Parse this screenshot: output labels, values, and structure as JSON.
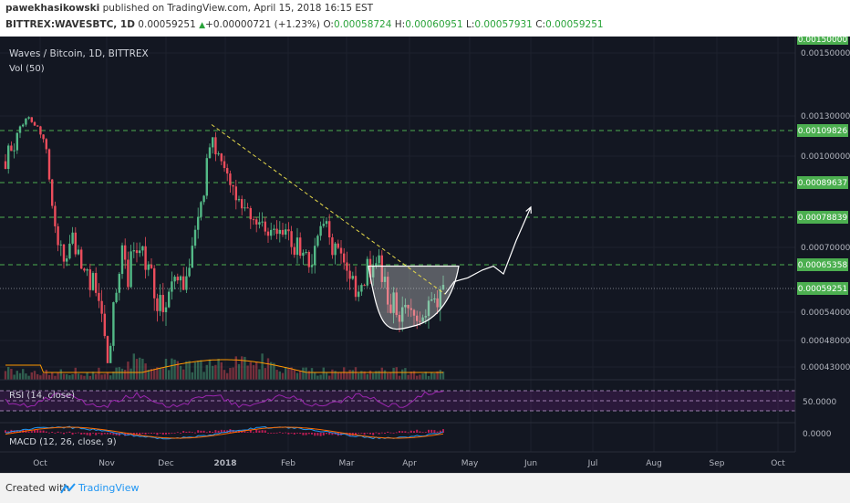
{
  "header": {
    "author": "pawekhasikowski",
    "published_text": "published on TradingView.com, April 15, 2018 16:15 EST",
    "symbol": "BITTREX:WAVESBTC, 1D",
    "last": "0.00059251",
    "change": "+0.00000721 (+1.23%)",
    "o_label": "O:",
    "o": "0.00058724",
    "h_label": "H:",
    "h": "0.00060951",
    "l_label": "L:",
    "l": "0.00057931",
    "c_label": "C:",
    "c": "0.00059251"
  },
  "chart": {
    "title": "Waves / Bitcoin, 1D, BITTREX",
    "vol_label": "Vol (50)",
    "rsi_label": "RSI (14, close)",
    "macd_label": "MACD (12, 26, close, 9)",
    "rsi_level_label": "50.0000",
    "macd_level_label": "0.0000",
    "top_badge": "0.00150000"
  },
  "chart_data": {
    "type": "candlestick",
    "symbol": "WAVESBTC",
    "timeframe": "1D",
    "x_ticks": [
      "Oct",
      "Nov",
      "Dec",
      "2018",
      "Feb",
      "Mar",
      "Apr",
      "May",
      "Jun",
      "Jul",
      "Aug",
      "Sep",
      "Oct"
    ],
    "y_ticks": [
      "0.00150000",
      "0.00130000",
      "0.00100000",
      "0.00070000",
      "0.00054000",
      "0.00048000",
      "0.00043000"
    ],
    "y_tick_values": [
      0.0015,
      0.0013,
      0.001,
      0.0007,
      0.00054,
      0.00048,
      0.00043
    ],
    "horizontal_levels": [
      {
        "value": 0.00109826,
        "label": "0.00109826",
        "color": "#4caf50"
      },
      {
        "value": 0.00089637,
        "label": "0.00089637",
        "color": "#4caf50"
      },
      {
        "value": 0.00078839,
        "label": "0.00078839",
        "color": "#4caf50"
      },
      {
        "value": 0.00065358,
        "label": "0.00065358",
        "color": "#4caf50"
      }
    ],
    "last_price": {
      "value": 0.00059251,
      "label": "0.00059251",
      "color": "#4caf50"
    },
    "up_color": "#53b987",
    "down_color": "#eb4d5c",
    "close_path": [
      {
        "x": 0,
        "y": 0.00098
      },
      {
        "x": 4,
        "y": 0.00102
      },
      {
        "x": 8,
        "y": 0.00098
      },
      {
        "x": 12,
        "y": 0.00107
      },
      {
        "x": 16,
        "y": 0.00113
      },
      {
        "x": 20,
        "y": 0.0012
      },
      {
        "x": 24,
        "y": 0.00131
      },
      {
        "x": 28,
        "y": 0.00122
      },
      {
        "x": 32,
        "y": 0.00118
      },
      {
        "x": 36,
        "y": 0.00112
      },
      {
        "x": 40,
        "y": 0.0011
      },
      {
        "x": 44,
        "y": 0.00103
      },
      {
        "x": 48,
        "y": 0.00093
      },
      {
        "x": 52,
        "y": 0.0008
      },
      {
        "x": 56,
        "y": 0.00069
      },
      {
        "x": 62,
        "y": 0.0007
      },
      {
        "x": 68,
        "y": 0.00066
      },
      {
        "x": 74,
        "y": 0.00072
      },
      {
        "x": 80,
        "y": 0.00068
      },
      {
        "x": 86,
        "y": 0.00063
      },
      {
        "x": 92,
        "y": 0.00062
      },
      {
        "x": 98,
        "y": 0.0006
      },
      {
        "x": 104,
        "y": 0.00055
      },
      {
        "x": 108,
        "y": 0.0005
      },
      {
        "x": 112,
        "y": 0.00045
      },
      {
        "x": 116,
        "y": 0.0005
      },
      {
        "x": 122,
        "y": 0.0006
      },
      {
        "x": 128,
        "y": 0.00068
      },
      {
        "x": 134,
        "y": 0.00062
      },
      {
        "x": 140,
        "y": 0.00069
      },
      {
        "x": 146,
        "y": 0.00072
      },
      {
        "x": 152,
        "y": 0.00066
      },
      {
        "x": 158,
        "y": 0.00064
      },
      {
        "x": 164,
        "y": 0.00058
      },
      {
        "x": 170,
        "y": 0.00055
      },
      {
        "x": 176,
        "y": 0.00057
      },
      {
        "x": 182,
        "y": 0.0006
      },
      {
        "x": 188,
        "y": 0.00064
      },
      {
        "x": 194,
        "y": 0.00061
      },
      {
        "x": 200,
        "y": 0.00065
      },
      {
        "x": 206,
        "y": 0.0007
      },
      {
        "x": 212,
        "y": 0.00077
      },
      {
        "x": 218,
        "y": 0.00088
      },
      {
        "x": 222,
        "y": 0.001
      },
      {
        "x": 226,
        "y": 0.00107
      },
      {
        "x": 230,
        "y": 0.00101
      },
      {
        "x": 236,
        "y": 0.00097
      },
      {
        "x": 242,
        "y": 0.00093
      },
      {
        "x": 248,
        "y": 0.00089
      },
      {
        "x": 254,
        "y": 0.00084
      },
      {
        "x": 260,
        "y": 0.00079
      },
      {
        "x": 266,
        "y": 0.00081
      },
      {
        "x": 272,
        "y": 0.00078
      },
      {
        "x": 278,
        "y": 0.00075
      },
      {
        "x": 284,
        "y": 0.00077
      },
      {
        "x": 290,
        "y": 0.00074
      },
      {
        "x": 296,
        "y": 0.00077
      },
      {
        "x": 302,
        "y": 0.00073
      },
      {
        "x": 308,
        "y": 0.00074
      },
      {
        "x": 314,
        "y": 0.0007
      },
      {
        "x": 320,
        "y": 0.00071
      },
      {
        "x": 326,
        "y": 0.00068
      },
      {
        "x": 332,
        "y": 0.00065
      },
      {
        "x": 338,
        "y": 0.00067
      },
      {
        "x": 344,
        "y": 0.00075
      },
      {
        "x": 350,
        "y": 0.00078
      },
      {
        "x": 356,
        "y": 0.00072
      },
      {
        "x": 362,
        "y": 0.00068
      },
      {
        "x": 368,
        "y": 0.00066
      },
      {
        "x": 374,
        "y": 0.00063
      },
      {
        "x": 380,
        "y": 0.00061
      },
      {
        "x": 386,
        "y": 0.00059
      },
      {
        "x": 392,
        "y": 0.00062
      },
      {
        "x": 398,
        "y": 0.00065
      },
      {
        "x": 404,
        "y": 0.00063
      },
      {
        "x": 410,
        "y": 0.00066
      },
      {
        "x": 416,
        "y": 0.0006
      },
      {
        "x": 422,
        "y": 0.00056
      },
      {
        "x": 428,
        "y": 0.00055
      },
      {
        "x": 434,
        "y": 0.00054
      },
      {
        "x": 440,
        "y": 0.00053
      },
      {
        "x": 446,
        "y": 0.00054
      },
      {
        "x": 452,
        "y": 0.00053
      },
      {
        "x": 458,
        "y": 0.00052
      },
      {
        "x": 464,
        "y": 0.00054
      },
      {
        "x": 470,
        "y": 0.00055
      },
      {
        "x": 476,
        "y": 0.00056
      },
      {
        "x": 480,
        "y": 0.00059
      }
    ],
    "trendline": {
      "from": {
        "x": 226,
        "y": 0.00118
      },
      "to": {
        "x": 482,
        "y": 0.00058
      },
      "color": "#e5d84a",
      "style": "dashed"
    },
    "cup_pattern": {
      "left_rim": {
        "x": 398,
        "y": 0.00065
      },
      "bottom": {
        "x": 446,
        "y": 0.00051
      },
      "right_rim": {
        "x": 497,
        "y": 0.00065
      }
    },
    "projection_path": [
      {
        "x": 482,
        "y": 0.00058
      },
      {
        "x": 492,
        "y": 0.00061
      },
      {
        "x": 507,
        "y": 0.00062
      },
      {
        "x": 523,
        "y": 0.00064
      },
      {
        "x": 535,
        "y": 0.00065
      },
      {
        "x": 546,
        "y": 0.00063
      },
      {
        "x": 560,
        "y": 0.00072
      },
      {
        "x": 576,
        "y": 0.00082
      }
    ],
    "volume_ma_color": "#ff9800",
    "rsi_levels": {
      "upper": 70,
      "middle": 50,
      "lower": 30
    },
    "rsi_color": "#9c27b0",
    "macd_colors": {
      "macd": "#2196f3",
      "signal": "#ff6d00",
      "histogram": "#e91e63"
    }
  }
}
